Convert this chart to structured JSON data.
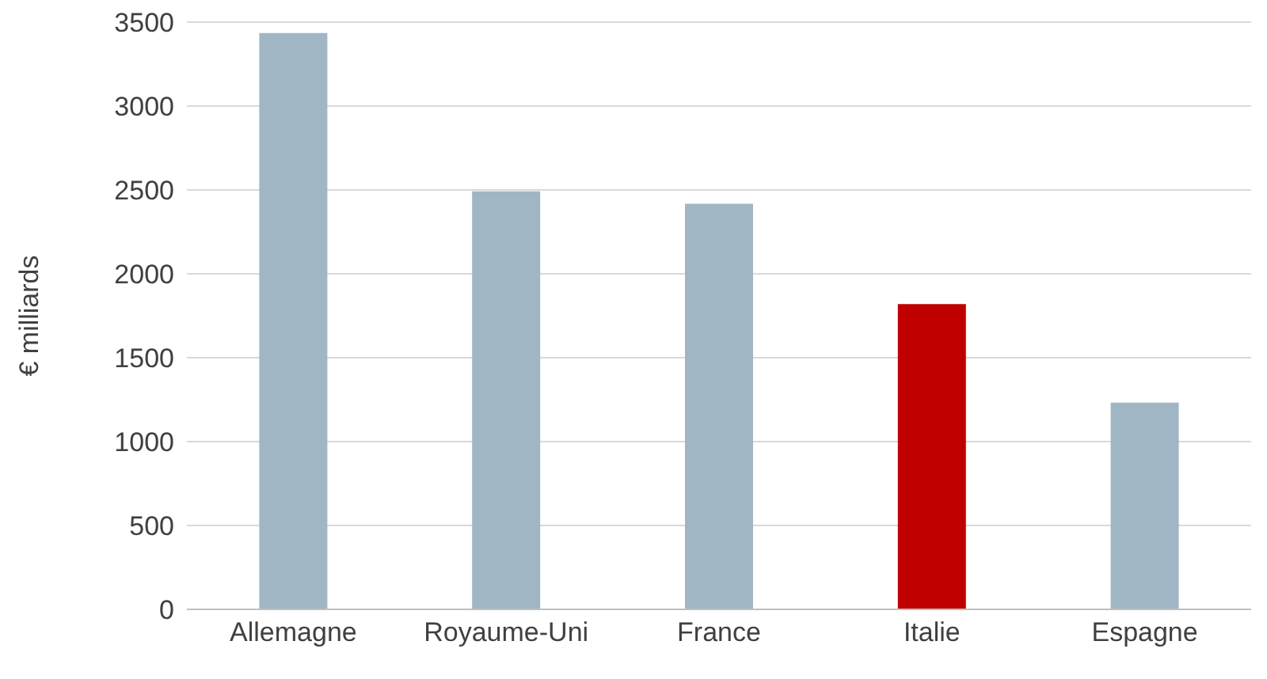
{
  "chart_data": {
    "type": "bar",
    "ylabel": "€ milliards",
    "categories": [
      "Allemagne",
      "Royaume-Uni",
      "France",
      "Italie",
      "Espagne"
    ],
    "values": [
      3435,
      2492,
      2417,
      1820,
      1232
    ],
    "colors": [
      "#a0b6c5",
      "#a0b6c5",
      "#a0b6c5",
      "#c00000",
      "#a0b6c5"
    ],
    "ylim": [
      0,
      3500
    ],
    "yticks": [
      0,
      500,
      1000,
      1500,
      2000,
      2500,
      3000,
      3500
    ],
    "grid": "y",
    "legend": false
  }
}
